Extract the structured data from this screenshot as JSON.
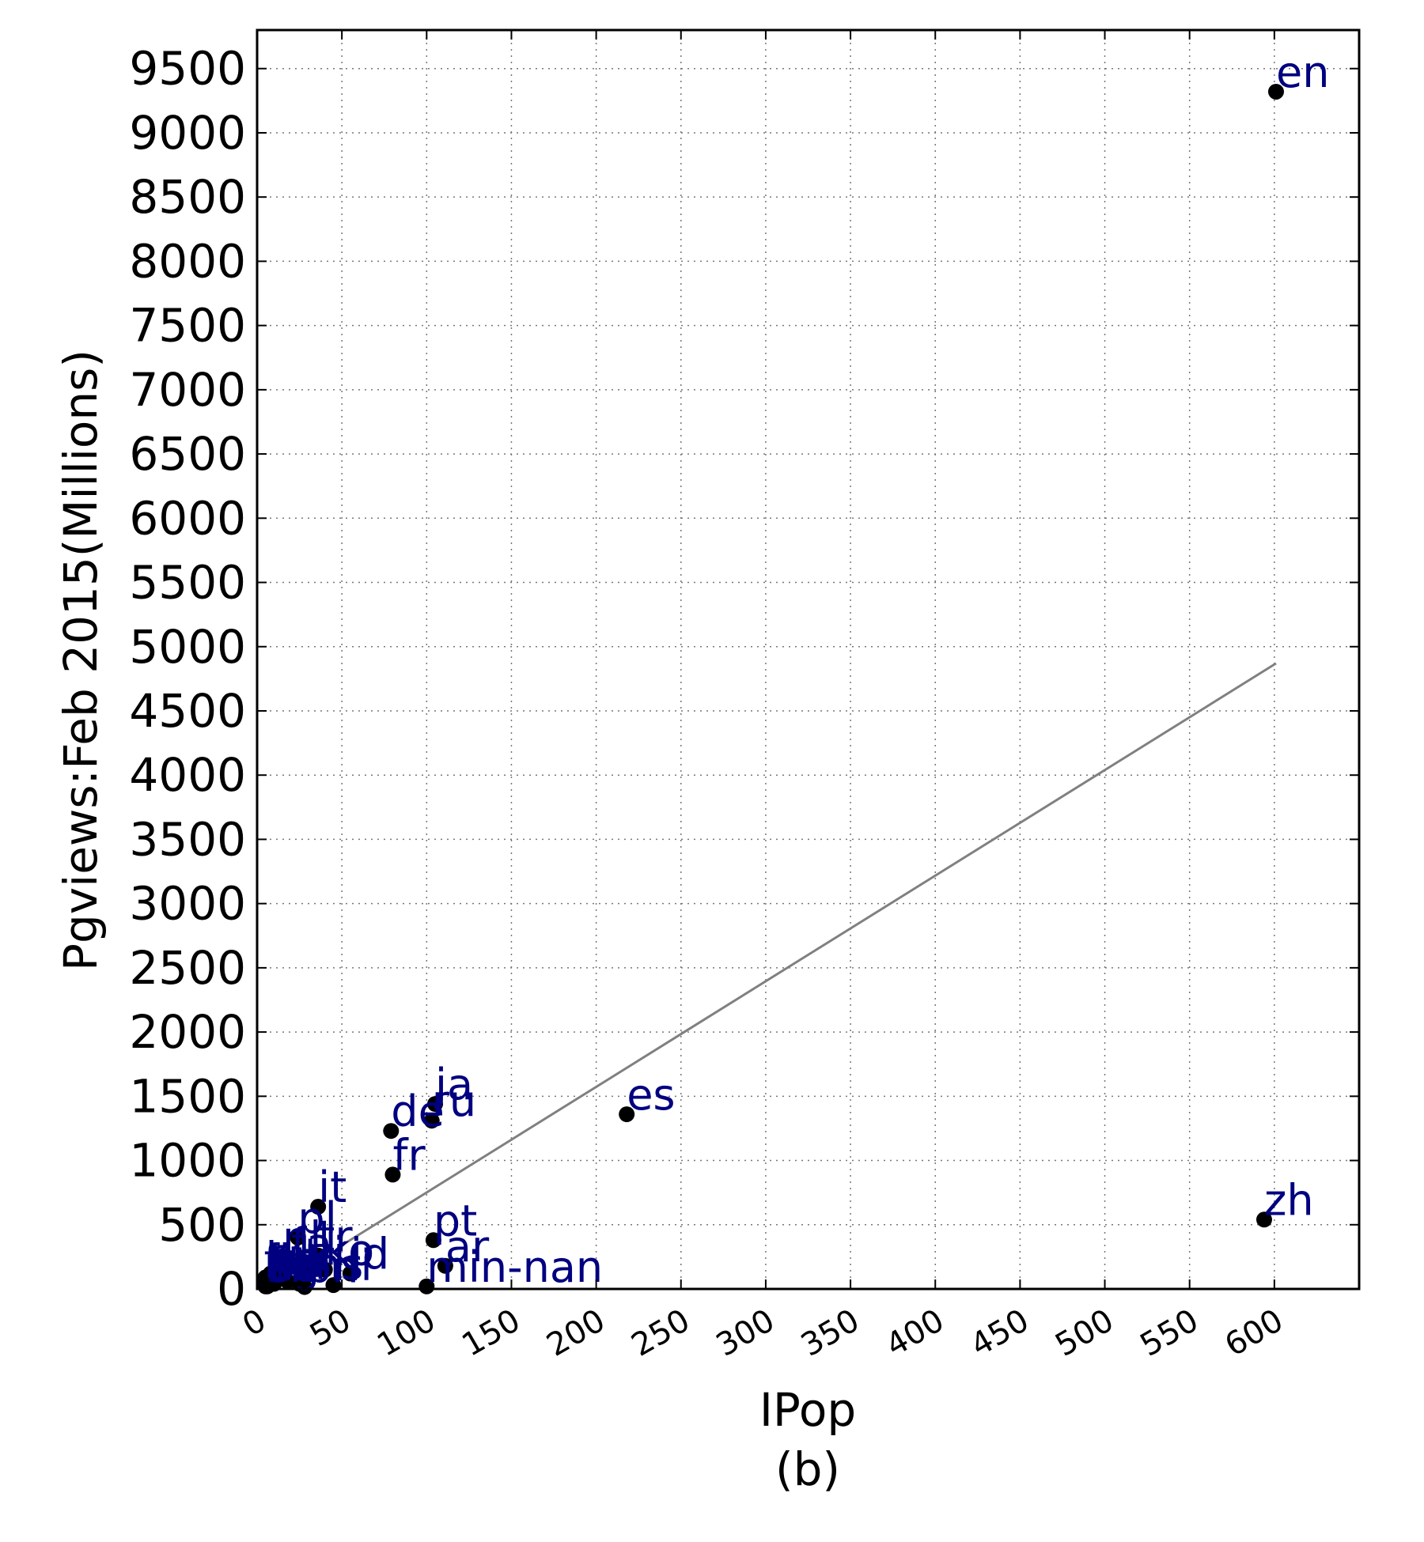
{
  "chart_data": {
    "type": "scatter",
    "title": "",
    "xlabel": "IPop",
    "ylabel": "Pgviews:Feb 2015(Millions)",
    "caption": "(b)",
    "xlim": [
      0,
      650
    ],
    "ylim": [
      0,
      9800
    ],
    "x_ticks": [
      0,
      50,
      100,
      150,
      200,
      250,
      300,
      350,
      400,
      450,
      500,
      550,
      600
    ],
    "y_ticks": [
      0,
      500,
      1000,
      1500,
      2000,
      2500,
      3000,
      3500,
      4000,
      4500,
      5000,
      5500,
      6000,
      6500,
      7000,
      7500,
      8000,
      8500,
      9000,
      9500
    ],
    "grid": true,
    "colors": {
      "points": "#000000",
      "labels": "#000080",
      "fit_line": "#808080"
    },
    "fit_line": {
      "from": [
        50,
        340
      ],
      "to": [
        601,
        4870
      ]
    },
    "points": [
      {
        "label": "en",
        "x": 601,
        "y": 9320
      },
      {
        "label": "zh",
        "x": 594,
        "y": 540
      },
      {
        "label": "es",
        "x": 218,
        "y": 1360
      },
      {
        "label": "ja",
        "x": 105,
        "y": 1440
      },
      {
        "label": "ru",
        "x": 103,
        "y": 1310
      },
      {
        "label": "de",
        "x": 79,
        "y": 1230
      },
      {
        "label": "fr",
        "x": 80,
        "y": 890
      },
      {
        "label": "it",
        "x": 36,
        "y": 640
      },
      {
        "label": "pl",
        "x": 24,
        "y": 400
      },
      {
        "label": "pt",
        "x": 104,
        "y": 380
      },
      {
        "label": "ar",
        "x": 111,
        "y": 180
      },
      {
        "label": "min-nan",
        "x": 100,
        "y": 20
      },
      {
        "label": "tr",
        "x": 36,
        "y": 260
      },
      {
        "label": "nl",
        "x": 15,
        "y": 250
      },
      {
        "label": "fa",
        "x": 20,
        "y": 200
      },
      {
        "label": "ko",
        "x": 40,
        "y": 150
      },
      {
        "label": "id",
        "x": 55,
        "y": 120
      },
      {
        "label": "vi",
        "x": 30,
        "y": 130
      },
      {
        "label": "sv",
        "x": 8,
        "y": 120
      },
      {
        "label": "uk",
        "x": 12,
        "y": 100
      },
      {
        "label": "he",
        "x": 5,
        "y": 90
      },
      {
        "label": "cs",
        "x": 10,
        "y": 80
      },
      {
        "label": "fi",
        "x": 4,
        "y": 70
      },
      {
        "label": "hu",
        "x": 7,
        "y": 60
      },
      {
        "label": "no",
        "x": 4,
        "y": 50
      },
      {
        "label": "ro",
        "x": 10,
        "y": 40
      },
      {
        "label": "th",
        "x": 18,
        "y": 60
      },
      {
        "label": "da",
        "x": 5,
        "y": 30
      },
      {
        "label": "el",
        "x": 6,
        "y": 30
      },
      {
        "label": "bg",
        "x": 5,
        "y": 20
      },
      {
        "label": "sr",
        "x": 6,
        "y": 20
      },
      {
        "label": "ms",
        "x": 25,
        "y": 40
      },
      {
        "label": "hi",
        "x": 45,
        "y": 30
      },
      {
        "label": "bn",
        "x": 28,
        "y": 15
      }
    ]
  }
}
